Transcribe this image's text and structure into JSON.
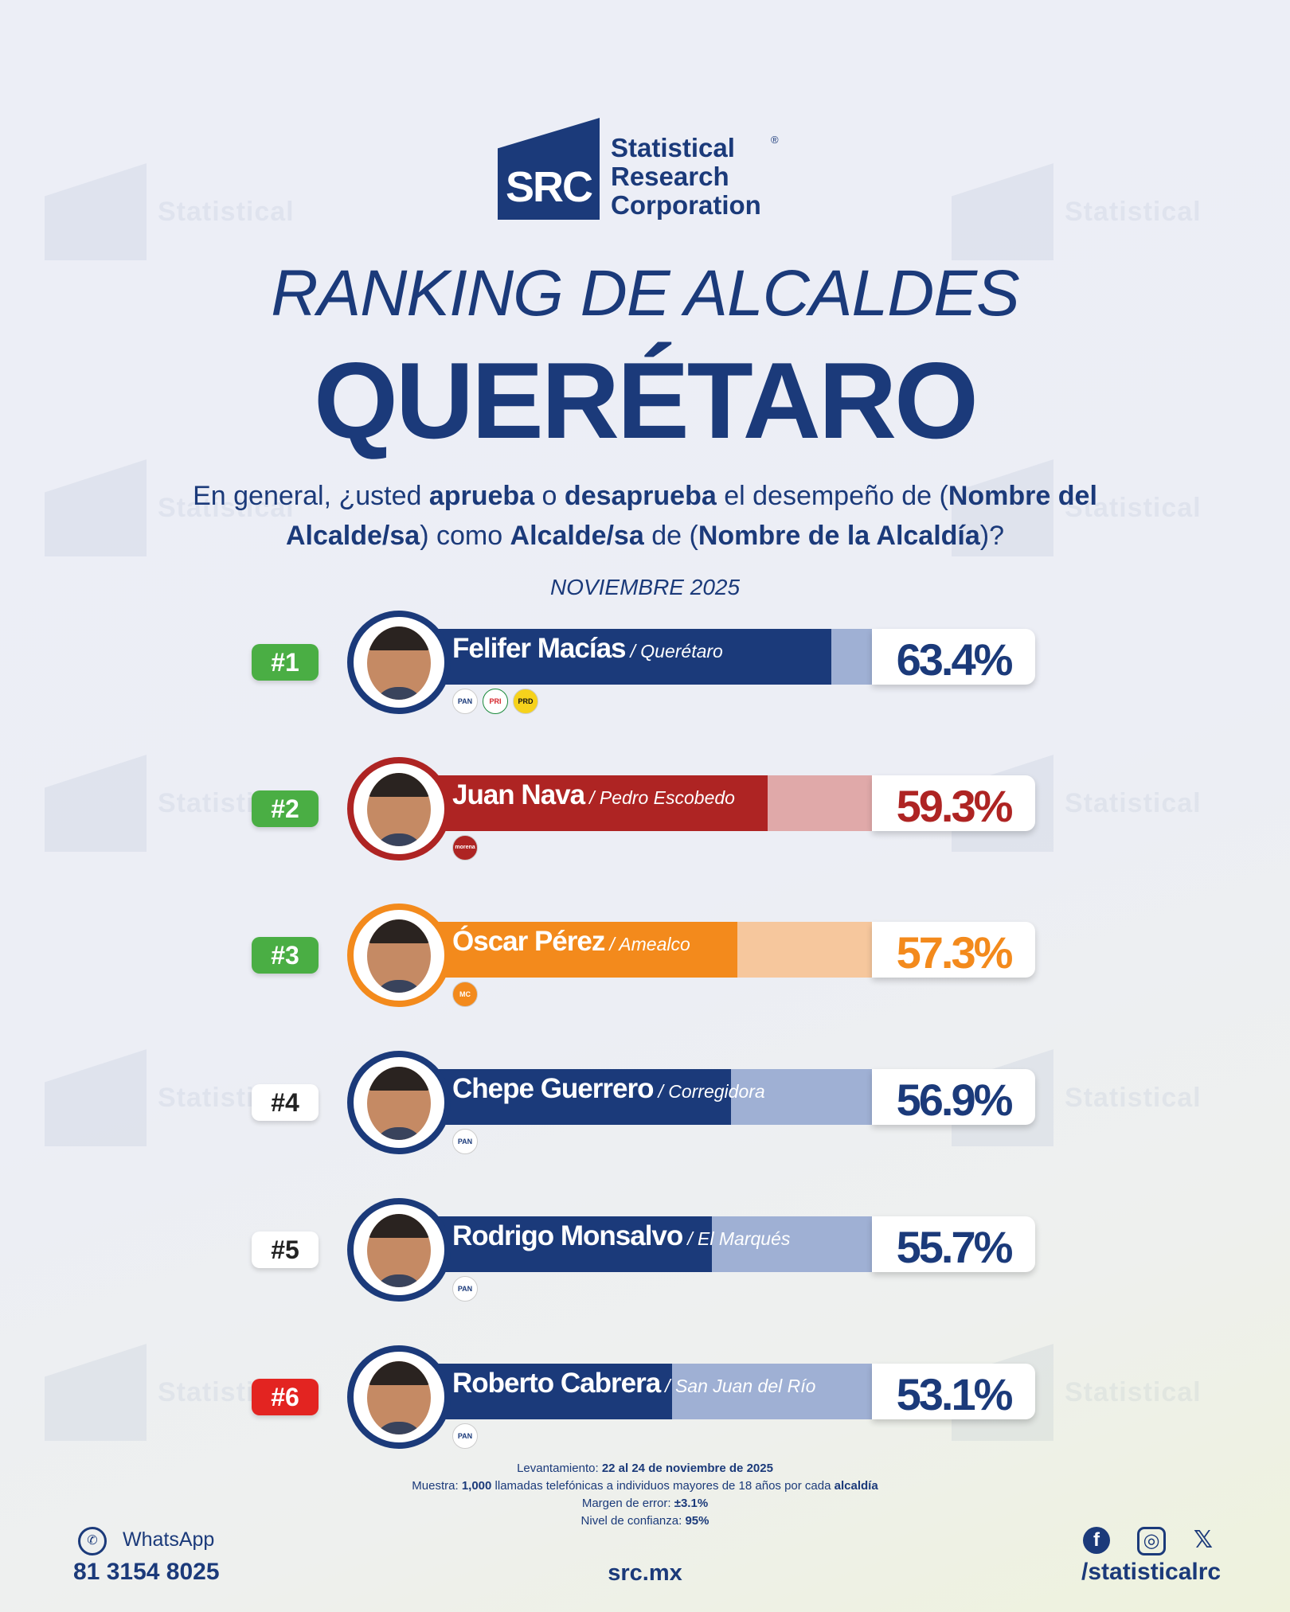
{
  "brand": {
    "logo_text": "SRC",
    "line1": "Statistical",
    "line2": "Research",
    "line3": "Corporation",
    "reg": "®"
  },
  "title": "RANKING DE ALCALDES",
  "subtitle": "QUERÉTARO",
  "question": {
    "p1": "En general, ¿usted ",
    "b1": "aprueba",
    "p2": " o ",
    "b2": "desaprueba",
    "p3": " el desempeño de (",
    "b3": "Nombre del Alcalde/sa",
    "p4": ") como ",
    "b4": "Alcalde/sa",
    "p5": " de (",
    "b5": "Nombre de la Alcaldía",
    "p6": ")?"
  },
  "period": "NOVIEMBRE 2025",
  "chart_data": {
    "type": "bar",
    "categories": [
      "Felifer Macías",
      "Juan Nava",
      "Óscar Pérez",
      "Chepe Guerrero",
      "Rodrigo Monsalvo",
      "Roberto Cabrera"
    ],
    "values": [
      63.4,
      59.3,
      57.3,
      56.9,
      55.7,
      53.1
    ],
    "ylim": [
      0,
      100
    ]
  },
  "rows": [
    {
      "rank": "#1",
      "name": "Felifer Macías",
      "place": "/ Querétaro",
      "pct": "63.4%",
      "value": 63.4,
      "parties": [
        "PAN",
        "PRI",
        "PRD"
      ]
    },
    {
      "rank": "#2",
      "name": "Juan Nava",
      "place": "/ Pedro Escobedo",
      "pct": "59.3%",
      "value": 59.3,
      "parties": [
        "morena"
      ]
    },
    {
      "rank": "#3",
      "name": "Óscar Pérez",
      "place": "/ Amealco",
      "pct": "57.3%",
      "value": 57.3,
      "parties": [
        "MC"
      ]
    },
    {
      "rank": "#4",
      "name": "Chepe Guerrero",
      "place": "/ Corregidora",
      "pct": "56.9%",
      "value": 56.9,
      "parties": [
        "PAN"
      ]
    },
    {
      "rank": "#5",
      "name": "Rodrigo Monsalvo",
      "place": "/ El Marqués",
      "pct": "55.7%",
      "value": 55.7,
      "parties": [
        "PAN"
      ]
    },
    {
      "rank": "#6",
      "name": "Roberto Cabrera",
      "place": "/ San Juan del Río",
      "pct": "53.1%",
      "value": 53.1,
      "parties": [
        "PAN"
      ]
    }
  ],
  "colors": {
    "navy": "#1b3a7a",
    "navy_tail": "#9fb0d4",
    "red": "#ae2423",
    "red_tail": "#e0a9a9",
    "orange": "#f38a1c",
    "orange_tail": "#f6c79d",
    "rank_green": "#4aae44",
    "rank_red": "#e32421",
    "rank_white": "#ffffff"
  },
  "methodology": {
    "l1_label": "Levantamiento: ",
    "l1_value": "22 al 24 de noviembre de 2025",
    "l2_label": "Muestra: ",
    "l2_value": "1,000",
    "l2_mid": " llamadas telefónicas a individuos mayores de 18 años por cada ",
    "l2_end": "alcaldía",
    "l3_label": "Margen de error: ",
    "l3_value": "±3.1%",
    "l4_label": "Nivel de confianza: ",
    "l4_value": "95%"
  },
  "footer": {
    "whatsapp_label": "WhatsApp",
    "whatsapp_icon": "whatsapp-icon",
    "phone": "81 3154 8025",
    "site": "src.mx",
    "facebook": "f",
    "instagram": "◎",
    "x": "𝕏",
    "handle": "/statisticalrc"
  }
}
